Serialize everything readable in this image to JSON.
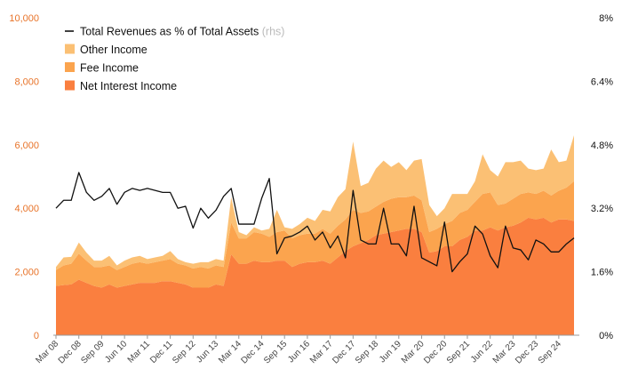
{
  "chart_data": {
    "type": "area",
    "stacked": true,
    "x_tick_labels": [
      "Mar 08",
      "Dec 08",
      "Sep 09",
      "Jun 10",
      "Mar 11",
      "Dec 11",
      "Sep 12",
      "Jun 13",
      "Mar 14",
      "Dec 14",
      "Sep 15",
      "Jun 16",
      "Mar 17",
      "Dec 17",
      "Sep 18",
      "Jun 19",
      "Mar 20",
      "Dec 20",
      "Sep 21",
      "Jun 22",
      "Mar 23",
      "Dec 23",
      "Sep 24"
    ],
    "y_left": {
      "ticks": [
        "0",
        "2,000",
        "4,000",
        "6,000",
        "8,000",
        "10,000"
      ],
      "range": [
        0,
        10000
      ]
    },
    "y_right": {
      "ticks": [
        "0%",
        "1.6%",
        "3.2%",
        "4.8%",
        "6.4%",
        "8%"
      ],
      "range": [
        0,
        8
      ]
    },
    "grid": false,
    "legend": {
      "placement": "top-left",
      "items": [
        {
          "label": "Total Revenues as % of Total Assets",
          "suffix": "(rhs)",
          "kind": "line",
          "color": "#111111"
        },
        {
          "label": "Other Income",
          "kind": "area",
          "color": "#fbc074"
        },
        {
          "label": "Fee Income",
          "kind": "area",
          "color": "#fba44e"
        },
        {
          "label": "Net Interest Income",
          "kind": "area",
          "color": "#fa7f3f"
        }
      ]
    },
    "series": [
      {
        "name": "Net Interest Income",
        "axis": "left",
        "color": "#fa7f3f",
        "values": [
          1550,
          1580,
          1600,
          1750,
          1650,
          1550,
          1500,
          1600,
          1500,
          1550,
          1600,
          1650,
          1650,
          1650,
          1700,
          1700,
          1650,
          1600,
          1500,
          1500,
          1500,
          1600,
          1550,
          2550,
          2250,
          2250,
          2350,
          2300,
          2300,
          2350,
          2350,
          2150,
          2250,
          2300,
          2300,
          2350,
          2250,
          2450,
          2650,
          2800,
          2900,
          3000,
          3150,
          3200,
          3250,
          3300,
          3350,
          3350,
          3250,
          2600,
          2650,
          2800,
          2800,
          3000,
          3100,
          3300,
          3300,
          3400,
          3300,
          3400,
          3450,
          3550,
          3700,
          3650,
          3700,
          3550,
          3650,
          3650,
          3600
        ]
      },
      {
        "name": "Fee Income",
        "axis": "left",
        "color": "#fba44e",
        "values": [
          500,
          620,
          650,
          820,
          700,
          600,
          650,
          600,
          550,
          600,
          650,
          650,
          600,
          650,
          650,
          700,
          600,
          600,
          600,
          650,
          600,
          600,
          600,
          1000,
          800,
          800,
          900,
          900,
          800,
          900,
          950,
          900,
          900,
          900,
          900,
          1000,
          950,
          1000,
          1000,
          1150,
          950,
          900,
          900,
          1000,
          1050,
          1050,
          1000,
          1050,
          1000,
          650,
          700,
          700,
          800,
          850,
          850,
          900,
          1150,
          1100,
          800,
          750,
          850,
          900,
          800,
          800,
          850,
          850,
          900,
          1000,
          1250
        ]
      },
      {
        "name": "Other Income",
        "axis": "left",
        "color": "#fbc074",
        "values": [
          100,
          250,
          220,
          350,
          250,
          200,
          200,
          300,
          150,
          200,
          200,
          200,
          150,
          150,
          150,
          250,
          150,
          100,
          150,
          150,
          200,
          200,
          200,
          800,
          200,
          100,
          150,
          100,
          250,
          700,
          100,
          300,
          350,
          500,
          400,
          600,
          700,
          900,
          950,
          2150,
          850,
          900,
          1200,
          1300,
          1000,
          1100,
          850,
          1100,
          1300,
          850,
          400,
          500,
          850,
          600,
          500,
          650,
          1250,
          700,
          900,
          1300,
          1150,
          1050,
          750,
          750,
          700,
          1450,
          900,
          850,
          1450
        ]
      },
      {
        "name": "Total Revenues as % of Total Assets",
        "axis": "right",
        "color": "#111111",
        "values": [
          3.2,
          3.4,
          3.4,
          4.1,
          3.6,
          3.4,
          3.5,
          3.7,
          3.3,
          3.6,
          3.7,
          3.65,
          3.7,
          3.65,
          3.6,
          3.6,
          3.2,
          3.25,
          2.7,
          3.2,
          2.95,
          3.15,
          3.5,
          3.7,
          2.8,
          2.8,
          2.8,
          3.45,
          3.95,
          2.05,
          2.45,
          2.5,
          2.6,
          2.75,
          2.4,
          2.6,
          2.2,
          2.5,
          1.95,
          3.65,
          2.4,
          2.3,
          2.3,
          3.2,
          2.3,
          2.3,
          2.0,
          3.25,
          1.95,
          1.85,
          1.75,
          2.85,
          1.6,
          1.85,
          2.05,
          2.75,
          2.55,
          2.0,
          1.7,
          2.75,
          2.2,
          2.15,
          1.9,
          2.4,
          2.3,
          2.1,
          2.1,
          2.3,
          2.45
        ]
      }
    ]
  }
}
